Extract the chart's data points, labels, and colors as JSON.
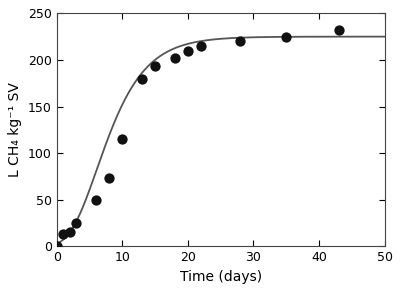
{
  "scatter_x": [
    0,
    1,
    2,
    3,
    6,
    8,
    10,
    13,
    15,
    18,
    20,
    22,
    28,
    35,
    43
  ],
  "scatter_y": [
    0,
    13,
    15,
    25,
    50,
    73,
    115,
    180,
    193,
    202,
    210,
    215,
    220,
    225,
    232
  ],
  "xlabel": "Time (days)",
  "ylabel": "L CH₄ kg⁻¹ SV",
  "xlim": [
    0,
    50
  ],
  "ylim": [
    0,
    250
  ],
  "xticks": [
    0,
    10,
    20,
    30,
    40,
    50
  ],
  "yticks": [
    0,
    50,
    100,
    150,
    200,
    250
  ],
  "scatter_color": "#111111",
  "scatter_size": 55,
  "line_color": "#555555",
  "line_width": 1.3,
  "fig_width": 4.01,
  "fig_height": 2.92,
  "dpi": 100
}
